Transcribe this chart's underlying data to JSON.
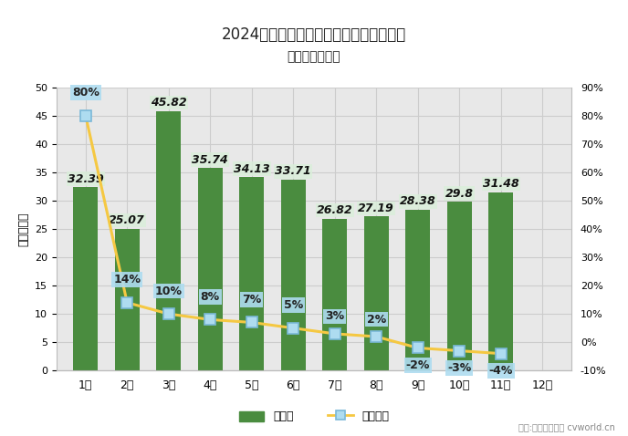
{
  "title_line1": "2024年商用车市场销量及累计增幅走势图",
  "title_line2": "（单位：万辆）",
  "months": [
    "1月",
    "2月",
    "3月",
    "4月",
    "5月",
    "6月",
    "7月",
    "8月",
    "9月",
    "10月",
    "11月",
    "12月"
  ],
  "bar_values": [
    32.39,
    25.07,
    45.82,
    35.74,
    34.13,
    33.71,
    26.82,
    27.19,
    28.38,
    29.8,
    31.48,
    null
  ],
  "line_values": [
    80,
    14,
    10,
    8,
    7,
    5,
    3,
    2,
    -2,
    -3,
    -4,
    null
  ],
  "bar_color": "#4a8c3f",
  "line_color": "#f5c842",
  "marker_face_color": "#aedcf0",
  "marker_edge_color": "#7ab8d8",
  "bar_label_bg": "#daeeda",
  "bar_label_color": "#111111",
  "line_label_bg": "#aedcf0",
  "line_label_fg": "#222222",
  "ylabel_left": "单位：万辆",
  "ylim_left": [
    0,
    50
  ],
  "ylim_right": [
    -10,
    90
  ],
  "yticks_left": [
    0,
    5,
    10,
    15,
    20,
    25,
    30,
    35,
    40,
    45,
    50
  ],
  "yticks_right_vals": [
    -10,
    0,
    10,
    20,
    30,
    40,
    50,
    60,
    70,
    80,
    90
  ],
  "yticks_right_labels": [
    "-10%",
    "0%",
    "10%",
    "20%",
    "30%",
    "40%",
    "50%",
    "60%",
    "70%",
    "80%",
    "90%"
  ],
  "grid_color": "#cccccc",
  "bg_color": "#e8e8e8",
  "fig_bg_color": "#ffffff",
  "legend_bar_label": "月销量",
  "legend_line_label": "累计增幅",
  "watermark": "制图:第一商用车网 cvworld.cn",
  "label_fontsize": 9,
  "title_fontsize": 12,
  "subtitle_fontsize": 10
}
